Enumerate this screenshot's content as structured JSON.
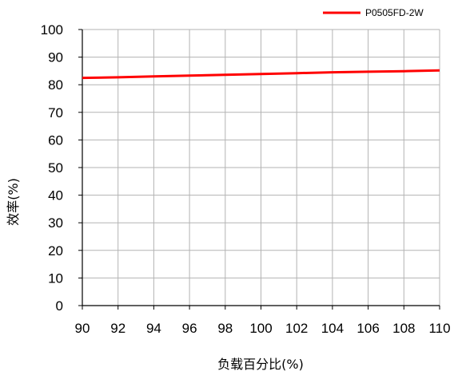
{
  "chart_data": {
    "type": "line",
    "title": "",
    "xlabel": "负载百分比(%)",
    "ylabel": "效率(%)",
    "xlim": [
      90,
      110
    ],
    "ylim": [
      0,
      100
    ],
    "xticks": [
      90,
      92,
      94,
      96,
      98,
      100,
      102,
      104,
      106,
      108,
      110
    ],
    "yticks": [
      0,
      10,
      20,
      30,
      40,
      50,
      60,
      70,
      80,
      90,
      100
    ],
    "grid": true,
    "legend_position": "top-right",
    "series": [
      {
        "name": "P0505FD-2W",
        "color": "#ff0000",
        "x": [
          90,
          92,
          94,
          96,
          98,
          100,
          102,
          104,
          106,
          108,
          110
        ],
        "y": [
          82.5,
          82.7,
          83.0,
          83.3,
          83.6,
          83.9,
          84.2,
          84.5,
          84.7,
          84.9,
          85.2
        ]
      }
    ]
  }
}
